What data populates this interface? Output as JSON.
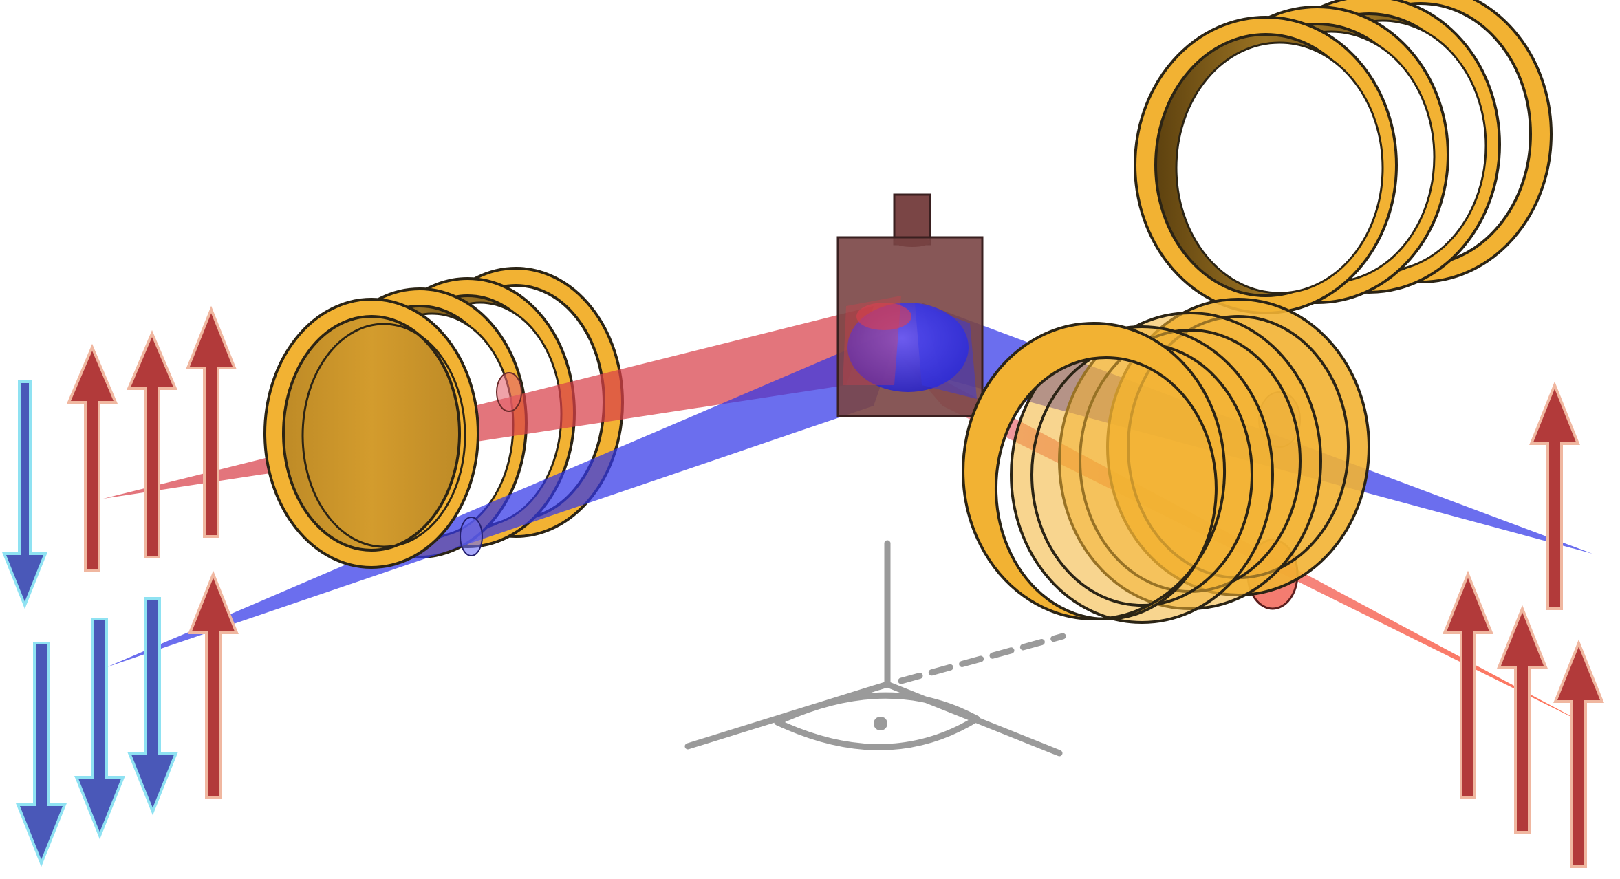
{
  "colors": {
    "background": "#ffffff",
    "ring_face": "#f2b233",
    "ring_shadow": "#6e4e12",
    "ring_outline": "#2b2415",
    "beam_red": "#e0525a",
    "beam_blue": "#3b3ff0",
    "arrow_red": "#b23a3a",
    "arrow_red_outline": "#f0b7a0",
    "arrow_blue": "#4a58b8",
    "arrow_blue_outline": "#8fe2f2",
    "prism": "#7a4545",
    "viewer": "#9a9a9a"
  },
  "icons": {
    "left_coil_assembly": "coil-rings-icon",
    "right_front_coil_assembly": "coil-rings-icon",
    "right_back_coil_assembly": "coil-rings-icon",
    "splitter": "prism-block-icon",
    "viewer": "eye-viewpoint-icon",
    "spin_up": "arrow-up-icon",
    "spin_down": "arrow-down-icon"
  },
  "spin_groups": {
    "left_upper": [
      "down",
      "up",
      "up",
      "up"
    ],
    "left_lower": [
      "down",
      "down",
      "down",
      "up"
    ],
    "right_upper": [
      "up"
    ],
    "right_lower": [
      "up",
      "up",
      "up"
    ]
  }
}
